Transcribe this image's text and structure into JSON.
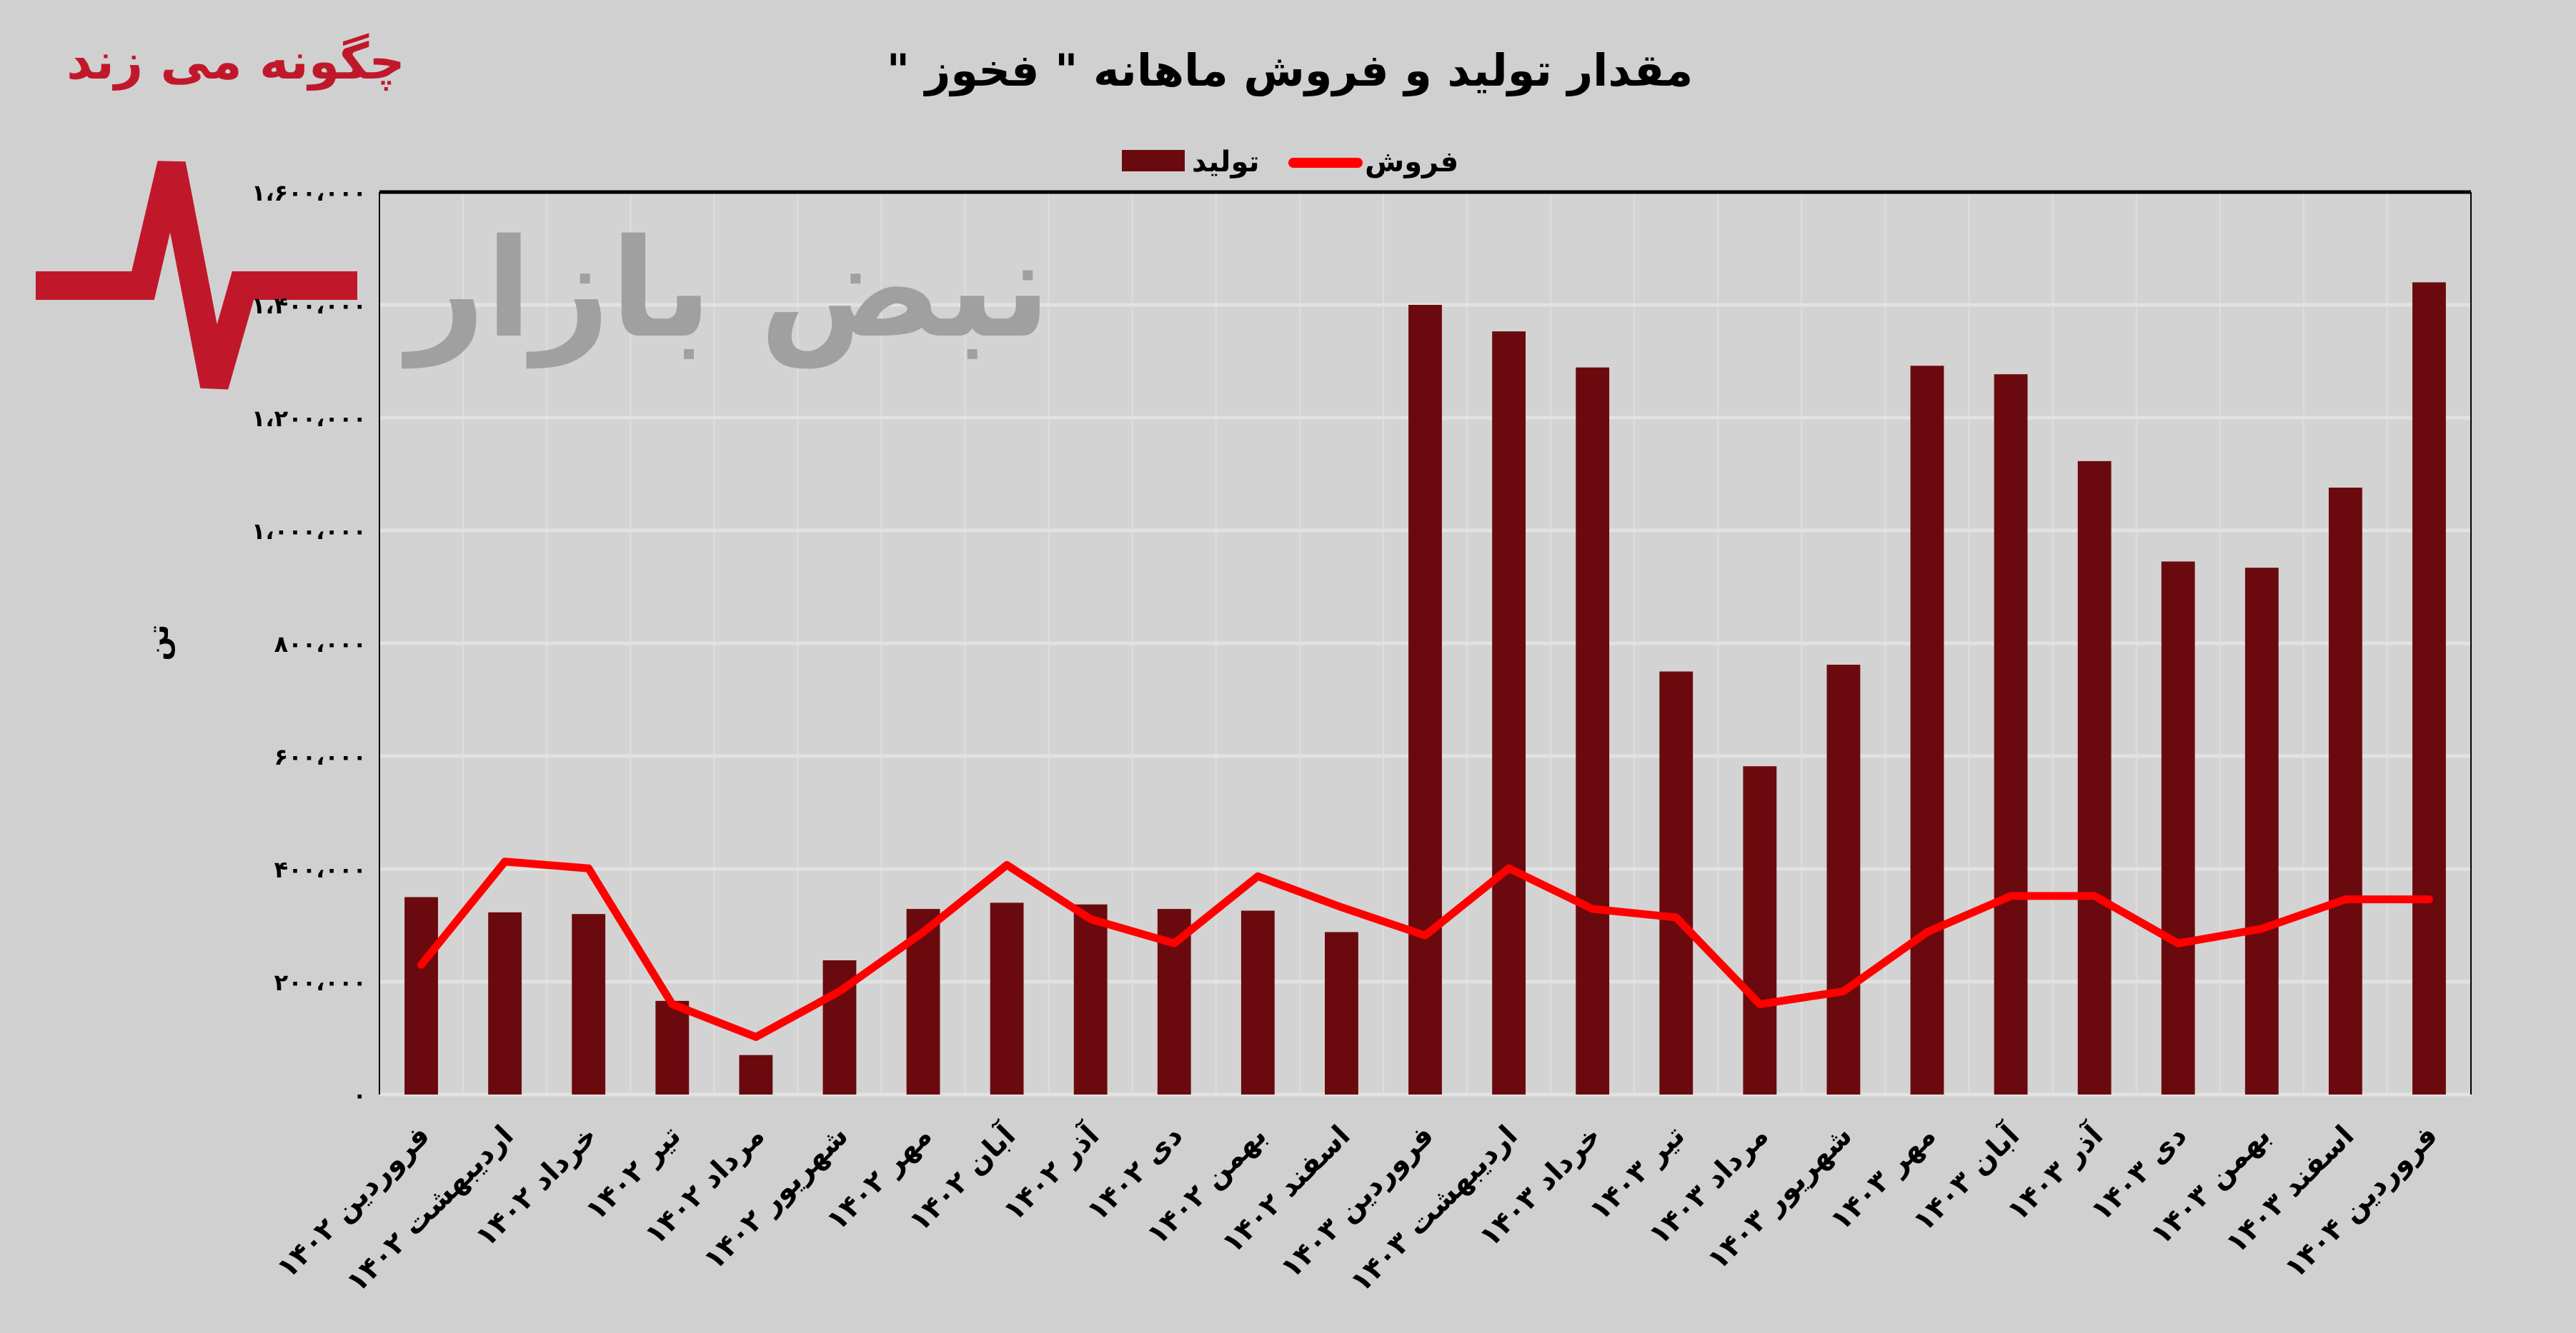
{
  "logo": {
    "tagline": "چگونه می زند",
    "name": "نبض بازار"
  },
  "chart_data": {
    "type": "bar",
    "title": "مقدار تولید و فروش ماهانه \" فخوز \"",
    "ylabel": "تن",
    "xlabel": "",
    "ylim": [
      0,
      1600000
    ],
    "yticks": [
      0,
      200000,
      400000,
      600000,
      800000,
      1000000,
      1200000,
      1400000,
      1600000
    ],
    "ytick_labels": [
      "۰",
      "۲۰۰،۰۰۰",
      "۴۰۰،۰۰۰",
      "۶۰۰،۰۰۰",
      "۸۰۰،۰۰۰",
      "۱،۰۰۰،۰۰۰",
      "۱،۲۰۰،۰۰۰",
      "۱،۴۰۰،۰۰۰",
      "۱،۶۰۰،۰۰۰"
    ],
    "grid": true,
    "legend_position": "top",
    "categories": [
      "فروردین ۱۴۰۲",
      "اردیبهشت ۱۴۰۲",
      "خرداد ۱۴۰۲",
      "تیر ۱۴۰۲",
      "مرداد ۱۴۰۲",
      "شهریور ۱۴۰۲",
      "مهر ۱۴۰۲",
      "آبان ۱۴۰۲",
      "آذر ۱۴۰۲",
      "دی ۱۴۰۲",
      "بهمن ۱۴۰۲",
      "اسفند ۱۴۰۲",
      "فروردین ۱۴۰۳",
      "اردیبهشت ۱۴۰۳",
      "خرداد ۱۴۰۳",
      "تیر ۱۴۰۳",
      "مرداد ۱۴۰۳",
      "شهریور ۱۴۰۳",
      "مهر ۱۴۰۳",
      "آبان ۱۴۰۳",
      "آذر ۱۴۰۳",
      "دی ۱۴۰۳",
      "بهمن ۱۴۰۳",
      "اسفند ۱۴۰۳",
      "فروردین ۱۴۰۴"
    ],
    "series": [
      {
        "name": "تولید",
        "type": "bar",
        "color": "#6b0a0e",
        "values": [
          350000,
          323000,
          320000,
          166000,
          70000,
          238000,
          329000,
          340000,
          337000,
          329000,
          326000,
          288000,
          1400000,
          1353000,
          1289000,
          750000,
          582000,
          762000,
          1292000,
          1277000,
          1123000,
          945000,
          934000,
          1076000,
          1440000
        ]
      },
      {
        "name": "فروش",
        "type": "line",
        "color": "#ff0000",
        "values": [
          230000,
          413000,
          401000,
          160000,
          102000,
          183000,
          288000,
          407000,
          311000,
          268000,
          387000,
          332000,
          282000,
          401000,
          329000,
          314000,
          160000,
          183000,
          288000,
          352000,
          352000,
          268000,
          294000,
          346000,
          346000
        ]
      }
    ]
  }
}
